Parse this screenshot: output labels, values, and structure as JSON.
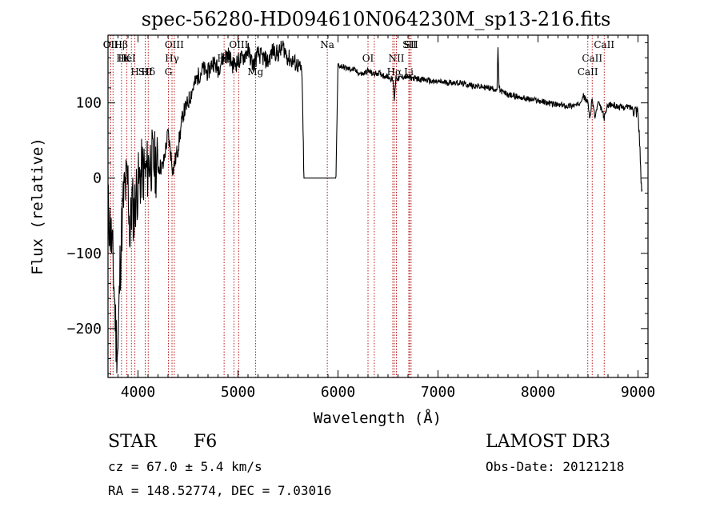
{
  "chart_data": {
    "type": "line",
    "title": "spec-56280-HD094610N064230M_sp13-216.fits",
    "xlabel": "Wavelength (Å)",
    "ylabel": "Flux (relative)",
    "xlim": [
      3700,
      9100
    ],
    "ylim": [
      -265,
      190
    ],
    "xticks": [
      4000,
      5000,
      6000,
      7000,
      8000,
      9000
    ],
    "yticks": [
      -200,
      -100,
      0,
      100
    ],
    "series": [
      {
        "name": "flux",
        "x": [
          3700,
          3740,
          3760,
          3780,
          3800,
          3820,
          3840,
          3860,
          3880,
          3900,
          3920,
          3940,
          3960,
          3980,
          4000,
          4040,
          4080,
          4120,
          4160,
          4200,
          4250,
          4300,
          4350,
          4400,
          4450,
          4500,
          4550,
          4600,
          4650,
          4700,
          4750,
          4800,
          4850,
          4900,
          4950,
          5000,
          5050,
          5100,
          5150,
          5200,
          5250,
          5300,
          5350,
          5400,
          5450,
          5500,
          5550,
          5600,
          5640,
          5650,
          5660,
          5980,
          5990,
          6000,
          6050,
          6100,
          6150,
          6200,
          6250,
          6300,
          6350,
          6400,
          6450,
          6500,
          6550,
          6563,
          6580,
          6600,
          6650,
          6700,
          6750,
          6800,
          6850,
          6900,
          6950,
          7000,
          7100,
          7200,
          7300,
          7400,
          7500,
          7550,
          7590,
          7600,
          7610,
          7620,
          7650,
          7700,
          7800,
          7900,
          8000,
          8100,
          8200,
          8300,
          8400,
          8450,
          8498,
          8520,
          8542,
          8570,
          8600,
          8640,
          8662,
          8700,
          8750,
          8800,
          8850,
          8900,
          8950,
          9000,
          9020,
          9030,
          9040
        ],
        "values": [
          -40,
          -90,
          -140,
          -210,
          -230,
          -120,
          -60,
          -20,
          -10,
          -5,
          -80,
          -30,
          -50,
          -20,
          -10,
          10,
          5,
          25,
          20,
          15,
          15,
          60,
          10,
          40,
          85,
          100,
          120,
          135,
          145,
          140,
          155,
          145,
          160,
          165,
          150,
          155,
          160,
          170,
          150,
          165,
          160,
          155,
          170,
          165,
          175,
          160,
          155,
          150,
          140,
          60,
          0,
          0,
          80,
          150,
          148,
          145,
          145,
          140,
          138,
          143,
          138,
          140,
          137,
          135,
          130,
          105,
          135,
          132,
          135,
          134,
          133,
          132,
          131,
          130,
          128,
          128,
          127,
          127,
          124,
          122,
          120,
          119,
          118,
          175,
          120,
          117,
          114,
          111,
          108,
          105,
          103,
          100,
          97,
          96,
          97,
          110,
          100,
          80,
          105,
          80,
          100,
          90,
          80,
          98,
          97,
          95,
          94,
          95,
          93,
          90,
          40,
          -10,
          -15
        ]
      }
    ],
    "line_labels": [
      {
        "label": "Hβ",
        "x": 3830
      },
      {
        "label": "K",
        "x": 3889
      },
      {
        "label": "Hδ",
        "x": 4102
      },
      {
        "label": "OII",
        "x": 3727
      },
      {
        "label": "HeI",
        "x": 3889
      },
      {
        "label": "SII",
        "x": 4072
      },
      {
        "label": "OII",
        "x": 3727
      },
      {
        "label": "Hε",
        "x": 3850
      },
      {
        "label": "H",
        "x": 3969
      },
      {
        "label": "OIII",
        "x": 4363
      },
      {
        "label": "Hγ",
        "x": 4340
      },
      {
        "label": "G",
        "x": 4304
      },
      {
        "label": "OIII",
        "x": 5007
      },
      {
        "label": "Hβ",
        "x": 4861
      },
      {
        "label": "Mg",
        "x": 5175
      },
      {
        "label": "Na",
        "x": 5893
      },
      {
        "label": "OI",
        "x": 6300
      },
      {
        "label": "Hα",
        "x": 6563
      },
      {
        "label": "SII",
        "x": 6716
      },
      {
        "label": "NII",
        "x": 6584
      },
      {
        "label": "Li",
        "x": 6708
      },
      {
        "label": "SII",
        "x": 6731
      },
      {
        "label": "CaII",
        "x": 8542
      },
      {
        "label": "CaII",
        "x": 8498
      },
      {
        "label": "CaII",
        "x": 8662
      }
    ],
    "marker_lines": [
      3727,
      3750,
      3835,
      3889,
      3934,
      3969,
      4072,
      4102,
      4304,
      4340,
      4363,
      4861,
      4959,
      5007,
      5175,
      5893,
      6300,
      6363,
      6548,
      6563,
      6584,
      6708,
      6716,
      6731,
      8498,
      8542,
      8662
    ]
  },
  "info": {
    "object_class": "STAR",
    "subclass": "F6",
    "survey": "LAMOST DR3",
    "redshift": "cz = 67.0 ± 5.4 km/s",
    "obs_date": "Obs-Date: 20121218",
    "coords": "RA = 148.52774, DEC =    7.03016"
  },
  "colors": {
    "spectrum": "#000000",
    "marker": "#b30000",
    "axis": "#000000"
  }
}
